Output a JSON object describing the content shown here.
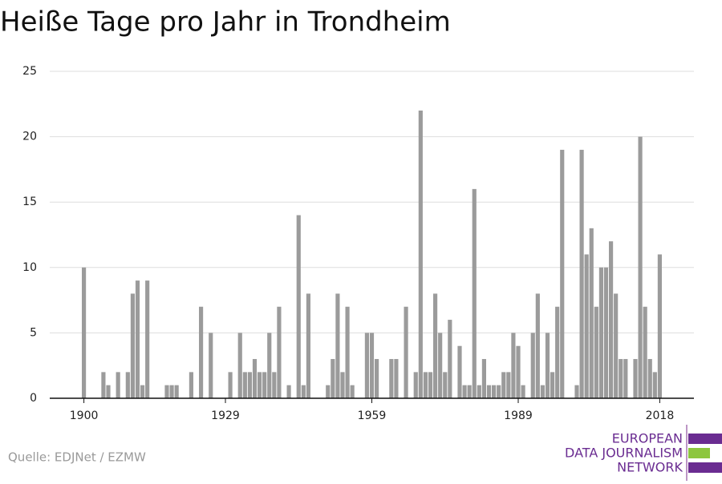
{
  "chart_data": {
    "type": "bar",
    "title": "Heiße Tage pro Jahr in Trondheim",
    "x": [
      1900,
      1901,
      1902,
      1903,
      1904,
      1905,
      1906,
      1907,
      1908,
      1909,
      1910,
      1911,
      1912,
      1913,
      1914,
      1915,
      1916,
      1917,
      1918,
      1919,
      1920,
      1921,
      1922,
      1923,
      1924,
      1925,
      1926,
      1927,
      1928,
      1929,
      1930,
      1931,
      1932,
      1933,
      1934,
      1935,
      1936,
      1937,
      1938,
      1939,
      1940,
      1941,
      1942,
      1943,
      1944,
      1945,
      1946,
      1947,
      1948,
      1949,
      1950,
      1951,
      1952,
      1953,
      1954,
      1955,
      1956,
      1957,
      1958,
      1959,
      1960,
      1961,
      1962,
      1963,
      1964,
      1965,
      1966,
      1967,
      1968,
      1969,
      1970,
      1971,
      1972,
      1973,
      1974,
      1975,
      1976,
      1977,
      1978,
      1979,
      1980,
      1981,
      1982,
      1983,
      1984,
      1985,
      1986,
      1987,
      1988,
      1989,
      1990,
      1991,
      1992,
      1993,
      1994,
      1995,
      1996,
      1997,
      1998,
      1999,
      2000,
      2001,
      2002,
      2003,
      2004,
      2005,
      2006,
      2007,
      2008,
      2009,
      2010,
      2011,
      2012,
      2013,
      2014,
      2015,
      2016,
      2017,
      2018
    ],
    "values": [
      10,
      0,
      0,
      0,
      2,
      1,
      0,
      2,
      0,
      2,
      8,
      9,
      1,
      9,
      0,
      0,
      0,
      1,
      1,
      1,
      0,
      0,
      2,
      0,
      7,
      0,
      5,
      0,
      0,
      0,
      2,
      0,
      5,
      2,
      2,
      3,
      2,
      2,
      5,
      2,
      7,
      0,
      1,
      0,
      14,
      1,
      8,
      0,
      0,
      0,
      1,
      3,
      8,
      2,
      7,
      1,
      0,
      0,
      5,
      5,
      3,
      0,
      0,
      3,
      3,
      0,
      7,
      0,
      2,
      22,
      2,
      2,
      8,
      5,
      2,
      6,
      0,
      4,
      1,
      1,
      16,
      1,
      3,
      1,
      1,
      1,
      2,
      2,
      5,
      4,
      1,
      0,
      5,
      8,
      1,
      5,
      2,
      7,
      19,
      0,
      0,
      1,
      19,
      11,
      13,
      7,
      10,
      10,
      12,
      8,
      3,
      3,
      0,
      3,
      20,
      7,
      3,
      2,
      11
    ],
    "color": "#9b9b9b",
    "xlim": [
      1893,
      2025
    ],
    "xticks": [
      1900,
      1929,
      1959,
      1989,
      2018
    ],
    "ylim": [
      0,
      25
    ],
    "yticks": [
      0,
      5,
      10,
      15,
      20,
      25
    ],
    "grid": true,
    "source": "Quelle: EDJNet / EZMW",
    "logo": [
      "EUROPEAN",
      "DATA JOURNALISM",
      "NETWORK"
    ]
  }
}
